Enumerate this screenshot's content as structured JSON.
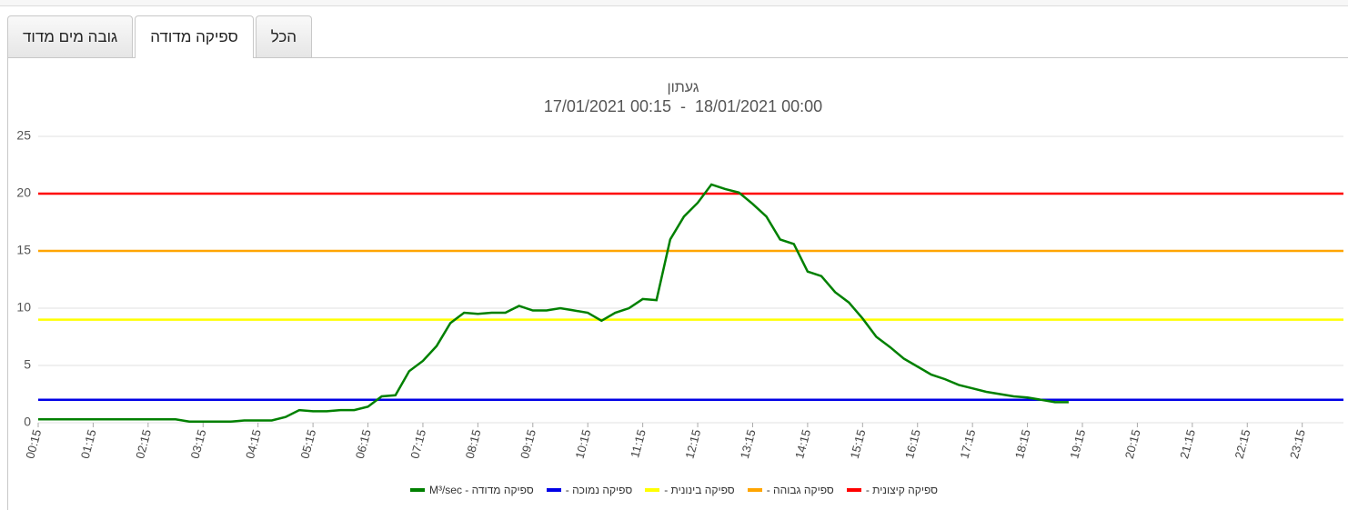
{
  "tabs": [
    "גובה מים מדוד",
    "ספיקה מדודה",
    "הכל"
  ],
  "chart_data": {
    "type": "line",
    "title": "געתון",
    "subtitle": "17/01/2021 00:15  -  18/01/2021 00:00",
    "categories": [
      "00:15",
      null,
      null,
      null,
      "01:15",
      null,
      null,
      null,
      "02:15",
      null,
      null,
      null,
      "03:15",
      null,
      null,
      null,
      "04:15",
      null,
      null,
      null,
      "05:15",
      null,
      null,
      null,
      "06:15",
      null,
      null,
      null,
      "07:15",
      null,
      null,
      null,
      "08:15",
      null,
      null,
      null,
      "09:15",
      null,
      null,
      null,
      "10:15",
      null,
      null,
      null,
      "11:15",
      null,
      null,
      null,
      "12:15",
      null,
      null,
      null,
      "13:15",
      null,
      null,
      null,
      "14:15",
      null,
      null,
      null,
      "15:15",
      null,
      null,
      null,
      "16:15",
      null,
      null,
      null,
      "17:15",
      null,
      null,
      null,
      "18:15",
      null,
      null,
      null,
      "19:15",
      null,
      null,
      null,
      "20:15",
      null,
      null,
      null,
      "21:15",
      null,
      null,
      null,
      "22:15",
      null,
      null,
      null,
      "23:15",
      null,
      null,
      null
    ],
    "ylim": [
      0,
      25
    ],
    "yticks": [
      0,
      5,
      10,
      15,
      20,
      25
    ],
    "grid": true,
    "series": [
      {
        "name": "ספיקה מדודה - M³/sec",
        "color": "#008000",
        "values": [
          0.3,
          0.3,
          0.3,
          0.3,
          0.3,
          0.3,
          0.3,
          0.3,
          0.3,
          0.3,
          0.3,
          0.1,
          0.1,
          0.1,
          0.1,
          0.2,
          0.2,
          0.2,
          0.5,
          1.1,
          1.0,
          1.0,
          1.1,
          1.1,
          1.4,
          2.3,
          2.4,
          4.5,
          5.4,
          6.7,
          8.7,
          9.6,
          9.5,
          9.6,
          9.6,
          10.2,
          9.8,
          9.8,
          10.0,
          9.8,
          9.6,
          8.9,
          9.6,
          10.0,
          10.8,
          10.7,
          16.0,
          18.0,
          19.2,
          20.8,
          20.4,
          20.1,
          19.1,
          18.0,
          16.0,
          15.6,
          13.2,
          12.8,
          11.4,
          10.5,
          9.1,
          7.5,
          6.6,
          5.6,
          4.9,
          4.2,
          3.8,
          3.3,
          3.0,
          2.7,
          2.5,
          2.3,
          2.2,
          2.0,
          1.8,
          1.8,
          null,
          null,
          null,
          null,
          null,
          null,
          null,
          null,
          null,
          null,
          null,
          null,
          null,
          null,
          null,
          null,
          null,
          null,
          null,
          null
        ]
      },
      {
        "name": "ספיקה נמוכה -",
        "color": "#0000e6",
        "values": [
          2,
          2,
          2,
          2,
          2,
          2,
          2,
          2,
          2,
          2,
          2,
          2,
          2,
          2,
          2,
          2,
          2,
          2,
          2,
          2,
          2,
          2,
          2,
          2,
          2,
          2,
          2,
          2,
          2,
          2,
          2,
          2,
          2,
          2,
          2,
          2,
          2,
          2,
          2,
          2,
          2,
          2,
          2,
          2,
          2,
          2,
          2,
          2,
          2,
          2,
          2,
          2,
          2,
          2,
          2,
          2,
          2,
          2,
          2,
          2,
          2,
          2,
          2,
          2,
          2,
          2,
          2,
          2,
          2,
          2,
          2,
          2,
          2,
          2,
          2,
          2,
          2,
          2,
          2,
          2,
          2,
          2,
          2,
          2,
          2,
          2,
          2,
          2,
          2,
          2,
          2,
          2,
          2,
          2,
          2,
          2
        ]
      },
      {
        "name": "ספיקה בינונית -",
        "color": "#ffff00",
        "values": [
          9,
          9,
          9,
          9,
          9,
          9,
          9,
          9,
          9,
          9,
          9,
          9,
          9,
          9,
          9,
          9,
          9,
          9,
          9,
          9,
          9,
          9,
          9,
          9,
          9,
          9,
          9,
          9,
          9,
          9,
          9,
          9,
          9,
          9,
          9,
          9,
          9,
          9,
          9,
          9,
          9,
          9,
          9,
          9,
          9,
          9,
          9,
          9,
          9,
          9,
          9,
          9,
          9,
          9,
          9,
          9,
          9,
          9,
          9,
          9,
          9,
          9,
          9,
          9,
          9,
          9,
          9,
          9,
          9,
          9,
          9,
          9,
          9,
          9,
          9,
          9,
          9,
          9,
          9,
          9,
          9,
          9,
          9,
          9,
          9,
          9,
          9,
          9,
          9,
          9,
          9,
          9,
          9,
          9,
          9,
          9
        ]
      },
      {
        "name": "ספיקה גבוהה -",
        "color": "#ffa500",
        "values": [
          15,
          15,
          15,
          15,
          15,
          15,
          15,
          15,
          15,
          15,
          15,
          15,
          15,
          15,
          15,
          15,
          15,
          15,
          15,
          15,
          15,
          15,
          15,
          15,
          15,
          15,
          15,
          15,
          15,
          15,
          15,
          15,
          15,
          15,
          15,
          15,
          15,
          15,
          15,
          15,
          15,
          15,
          15,
          15,
          15,
          15,
          15,
          15,
          15,
          15,
          15,
          15,
          15,
          15,
          15,
          15,
          15,
          15,
          15,
          15,
          15,
          15,
          15,
          15,
          15,
          15,
          15,
          15,
          15,
          15,
          15,
          15,
          15,
          15,
          15,
          15,
          15,
          15,
          15,
          15,
          15,
          15,
          15,
          15,
          15,
          15,
          15,
          15,
          15,
          15,
          15,
          15,
          15,
          15,
          15,
          15
        ]
      },
      {
        "name": "ספיקה קיצונית -",
        "color": "#ff0000",
        "values": [
          20,
          20,
          20,
          20,
          20,
          20,
          20,
          20,
          20,
          20,
          20,
          20,
          20,
          20,
          20,
          20,
          20,
          20,
          20,
          20,
          20,
          20,
          20,
          20,
          20,
          20,
          20,
          20,
          20,
          20,
          20,
          20,
          20,
          20,
          20,
          20,
          20,
          20,
          20,
          20,
          20,
          20,
          20,
          20,
          20,
          20,
          20,
          20,
          20,
          20,
          20,
          20,
          20,
          20,
          20,
          20,
          20,
          20,
          20,
          20,
          20,
          20,
          20,
          20,
          20,
          20,
          20,
          20,
          20,
          20,
          20,
          20,
          20,
          20,
          20,
          20,
          20,
          20,
          20,
          20,
          20,
          20,
          20,
          20,
          20,
          20,
          20,
          20,
          20,
          20,
          20,
          20,
          20,
          20,
          20,
          20
        ]
      }
    ]
  }
}
